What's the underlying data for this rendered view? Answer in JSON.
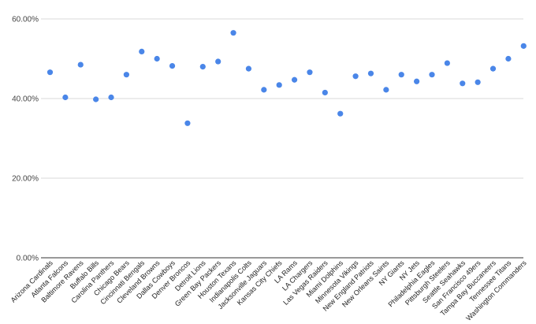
{
  "chart_data": {
    "type": "scatter",
    "title": "",
    "xlabel": "",
    "ylabel": "",
    "ylim": [
      0,
      60
    ],
    "yticks": [
      0,
      20,
      40,
      60
    ],
    "ytick_labels": [
      "0.00%",
      "20.00%",
      "40.00%",
      "60.00%"
    ],
    "grid": true,
    "legend": "none",
    "point_color": "#4a86e8",
    "categories": [
      "Arizona Cardinals",
      "Atlanta Falcons",
      "Baltimore Ravens",
      "Buffalo Bills",
      "Carolina Panthers",
      "Chicago Bears",
      "Cincinnati Bengals",
      "Cleveland Browns",
      "Dallas Cowboys",
      "Denver Broncos",
      "Detroit Lions",
      "Green Bay Packers",
      "Houston Texans",
      "Indianapolis Colts",
      "Jacksonville Jaguars",
      "Kansas City Chiefs",
      "LA Rams",
      "LA Chargers",
      "Las Vegas Raiders",
      "Miami Dolphins",
      "Minnesota Vikings",
      "New England Patriots",
      "New Orleans Saints",
      "NY Giants",
      "NY Jets",
      "Philadelphia Eagles",
      "Pittsburgh Steelers",
      "Seattle Seahawks",
      "San Francisco 49ers",
      "Tampa Bay Buccaneers",
      "Tennessee Titans",
      "Washington Commanders"
    ],
    "values": [
      46.6,
      40.3,
      48.5,
      39.8,
      40.3,
      46.0,
      51.8,
      50.0,
      48.2,
      33.8,
      48.0,
      49.3,
      56.5,
      47.5,
      42.2,
      43.4,
      44.7,
      46.6,
      41.5,
      36.2,
      45.6,
      46.3,
      42.2,
      46.0,
      44.3,
      46.0,
      48.9,
      43.8,
      44.1,
      47.5,
      50.0,
      53.2
    ]
  }
}
